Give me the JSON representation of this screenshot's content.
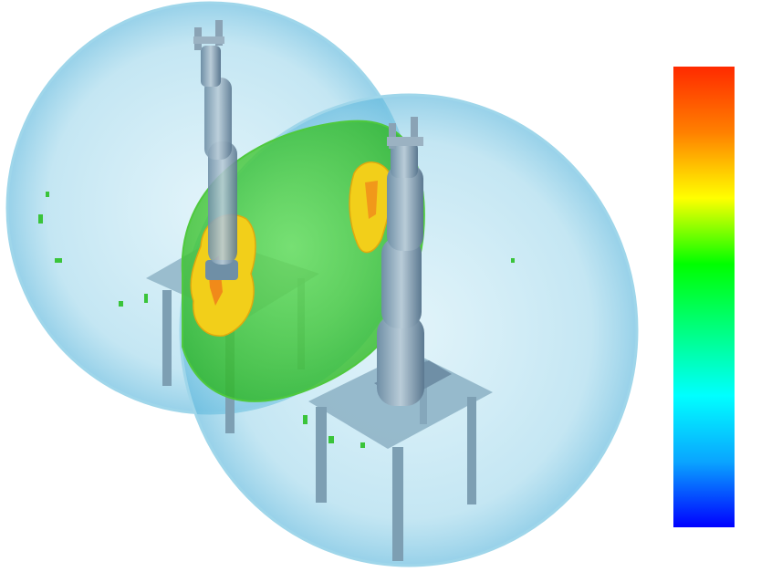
{
  "scene": {
    "robots": 2,
    "tables": 2,
    "workspace_volumes": 2,
    "overlap_volume_color": "#2fd02f",
    "workspace_color": "#7fd3e6",
    "hotspot_color": "#f2cf1a"
  },
  "colorbar": {
    "orientation": "vertical",
    "stops": [
      "#0000ff",
      "#0aa5ff",
      "#00ffff",
      "#00ff80",
      "#00ff00",
      "#ffff00",
      "#ff8000",
      "#ff2a00"
    ]
  }
}
